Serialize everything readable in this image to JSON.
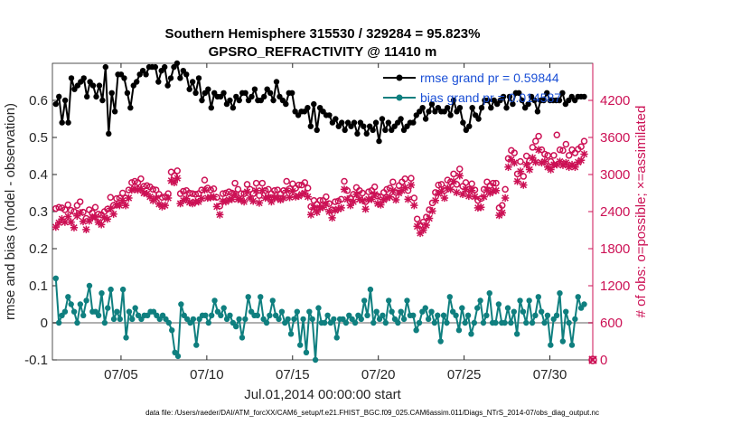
{
  "chart_data": {
    "type": "line",
    "title": "Southern Hemisphere 315530 / 329284 = 95.823%",
    "subtitle": "GPSRO_REFRACTIVITY @ 11410 m",
    "xlabel": "Jul.01,2014 00:00:00 start",
    "ylabel": "rmse and bias (model - observation)",
    "y2label": "# of obs: o=possible; ×=assimilated",
    "footnote": "data file: /Users/raeder/DAI/ATM_forcXX/CAM6_setup/f.e21.FHIST_BGC.f09_025.CAM6assim.011/Diags_NTrS_2014-07/obs_diag_output.nc",
    "xlim": [
      1,
      32.5
    ],
    "ylim": [
      -0.1,
      0.7
    ],
    "y2lim": [
      0,
      4800
    ],
    "x_ticks": [
      5,
      10,
      15,
      20,
      25,
      30
    ],
    "x_tick_labels": [
      "07/05",
      "07/10",
      "07/15",
      "07/20",
      "07/25",
      "07/30"
    ],
    "y_ticks": [
      -0.1,
      0,
      0.1,
      0.2,
      0.3,
      0.4,
      0.5,
      0.6
    ],
    "y_tick_labels": [
      "-0.1",
      "0",
      "0.1",
      "0.2",
      "0.3",
      "0.4",
      "0.5",
      "0.6"
    ],
    "y2_ticks": [
      0,
      600,
      1200,
      1800,
      2400,
      3000,
      3600,
      4200
    ],
    "y2_tick_labels": [
      "0",
      "600",
      "1200",
      "1800",
      "2400",
      "3000",
      "3600",
      "4200"
    ],
    "legend_position": "top-right",
    "colors": {
      "rmse": "#000000",
      "bias": "#0f7f7f",
      "obs": "#cc1155",
      "zero_line": "#b0b0b0"
    },
    "series": [
      {
        "name": "rmse grand pr = 0.59844",
        "axis": "left",
        "values": [
          0.59,
          0.61,
          0.54,
          0.6,
          0.54,
          0.66,
          0.63,
          0.64,
          0.65,
          0.66,
          0.61,
          0.65,
          0.64,
          0.61,
          0.64,
          0.6,
          0.69,
          0.51,
          0.62,
          0.57,
          0.67,
          0.67,
          0.66,
          0.62,
          0.58,
          0.64,
          0.65,
          0.67,
          0.68,
          0.67,
          0.69,
          0.69,
          0.69,
          0.65,
          0.68,
          0.69,
          0.64,
          0.66,
          0.69,
          0.7,
          0.66,
          0.68,
          0.67,
          0.63,
          0.65,
          0.62,
          0.66,
          0.6,
          0.62,
          0.63,
          0.58,
          0.62,
          0.61,
          0.61,
          0.62,
          0.59,
          0.6,
          0.58,
          0.61,
          0.6,
          0.62,
          0.62,
          0.6,
          0.61,
          0.63,
          0.6,
          0.6,
          0.61,
          0.63,
          0.62,
          0.6,
          0.65,
          0.61,
          0.6,
          0.59,
          0.62,
          0.62,
          0.57,
          0.56,
          0.57,
          0.57,
          0.58,
          0.53,
          0.59,
          0.52,
          0.58,
          0.57,
          0.56,
          0.56,
          0.54,
          0.55,
          0.53,
          0.54,
          0.52,
          0.54,
          0.53,
          0.54,
          0.51,
          0.54,
          0.53,
          0.51,
          0.53,
          0.52,
          0.54,
          0.49,
          0.55,
          0.52,
          0.54,
          0.52,
          0.53,
          0.54,
          0.55,
          0.52,
          0.53,
          0.54,
          0.54,
          0.56,
          0.57,
          0.58,
          0.55,
          0.57,
          0.59,
          0.57,
          0.58,
          0.57,
          0.57,
          0.58,
          0.56,
          0.6,
          0.57,
          0.58,
          0.54,
          0.52,
          0.53,
          0.58,
          0.56,
          0.55,
          0.58,
          0.6,
          0.6,
          0.58,
          0.6,
          0.59,
          0.6,
          0.61,
          0.58,
          0.61,
          0.59,
          0.62,
          0.62,
          0.6,
          0.58,
          0.59,
          0.61,
          0.6,
          0.57,
          0.6,
          0.6,
          0.62,
          0.6,
          0.6,
          0.6,
          0.6,
          0.62,
          0.59,
          0.6,
          0.61,
          0.6,
          0.61,
          0.61,
          0.61
        ]
      },
      {
        "name": "bias grand pr = 0.014587",
        "axis": "left",
        "values": [
          0.12,
          0.0,
          0.02,
          0.03,
          0.07,
          0.05,
          0.03,
          0.0,
          0.05,
          0.02,
          0.06,
          0.1,
          0.03,
          0.03,
          0.02,
          0.08,
          0.0,
          0.04,
          0.09,
          0.01,
          0.03,
          0.01,
          0.09,
          -0.04,
          0.03,
          0.01,
          0.04,
          0.02,
          0.01,
          0.02,
          0.02,
          0.03,
          0.03,
          0.02,
          0.01,
          0.02,
          0.01,
          0.0,
          -0.02,
          -0.08,
          -0.09,
          0.05,
          0.02,
          0.01,
          0.0,
          0.01,
          -0.06,
          0.01,
          0.02,
          0.02,
          0.0,
          0.02,
          0.06,
          0.03,
          0.02,
          0.04,
          0.01,
          0.02,
          0.0,
          -0.01,
          0.01,
          -0.04,
          0.01,
          0.07,
          0.03,
          0.02,
          0.02,
          0.07,
          0.01,
          0.0,
          0.02,
          0.06,
          0.02,
          0.01,
          0.03,
          0.0,
          0.01,
          -0.03,
          0.01,
          0.03,
          -0.06,
          0.01,
          -0.08,
          0.03,
          0.01,
          -0.1,
          0.04,
          0.0,
          0.0,
          0.02,
          0.0,
          0.01,
          -0.04,
          0.01,
          0.01,
          0.0,
          0.02,
          0.01,
          0.0,
          0.02,
          0.01,
          0.06,
          0.02,
          0.09,
          0.0,
          0.03,
          0.01,
          0.02,
          0.0,
          0.06,
          0.03,
          0.01,
          0.0,
          0.03,
          0.01,
          0.06,
          0.02,
          0.02,
          -0.02,
          0.0,
          0.03,
          0.04,
          0.01,
          0.03,
          0.0,
          0.02,
          -0.05,
          0.02,
          0.0,
          0.07,
          0.03,
          0.02,
          -0.02,
          0.04,
          0.0,
          0.02,
          -0.03,
          0.0,
          0.04,
          0.06,
          0.0,
          0.02,
          0.08,
          0.0,
          0.0,
          0.05,
          0.0,
          0.0,
          0.04,
          0.0,
          0.03,
          -0.03,
          0.06,
          0.03,
          0.0,
          0.06,
          0.0,
          0.02,
          0.07,
          0.03,
          0.0,
          0.02,
          -0.06,
          0.01,
          0.02,
          0.08,
          -0.05,
          0.03,
          0.0,
          -0.06,
          0.01,
          0.07,
          0.04,
          0.05
        ]
      },
      {
        "name": "possible",
        "axis": "right",
        "marker": "o",
        "values": [
          2450,
          2470,
          2460,
          2430,
          2510,
          2420,
          2400,
          2500,
          2560,
          2390,
          2290,
          2430,
          2380,
          2470,
          2360,
          2350,
          2400,
          2440,
          2630,
          2500,
          2610,
          2620,
          2700,
          2620,
          2750,
          2870,
          2890,
          2870,
          2930,
          2810,
          2820,
          2800,
          2760,
          2750,
          2680,
          2630,
          2640,
          2690,
          3040,
          2980,
          3060,
          2690,
          2730,
          2740,
          2700,
          2690,
          2680,
          2690,
          2750,
          2910,
          2780,
          2750,
          2770,
          2630,
          2490,
          2690,
          2700,
          2720,
          2700,
          2860,
          2760,
          2690,
          2690,
          2840,
          2760,
          2690,
          2860,
          2660,
          2860,
          2740,
          2760,
          2690,
          2740,
          2750,
          2690,
          2740,
          2890,
          2770,
          2850,
          2780,
          2830,
          2830,
          2870,
          2780,
          2480,
          2580,
          2520,
          2580,
          2580,
          2640,
          2530,
          2430,
          2560,
          2570,
          2600,
          2890,
          2740,
          2620,
          2680,
          2790,
          2740,
          2700,
          2560,
          2720,
          2740,
          2800,
          2650,
          2640,
          2710,
          2760,
          2780,
          2880,
          2710,
          2820,
          2880,
          2930,
          2740,
          2940,
          2620,
          2280,
          2180,
          2230,
          2310,
          2430,
          2540,
          2710,
          2830,
          2840,
          2740,
          2910,
          2880,
          3010,
          2840,
          3090,
          2810,
          2870,
          2760,
          2850,
          2750,
          2580,
          2610,
          2760,
          2880,
          2820,
          2860,
          2860,
          2460,
          2500,
          2760,
          3260,
          3390,
          3350,
          3010,
          3210,
          2970,
          3300,
          3220,
          3440,
          3540,
          3620,
          3400,
          3330,
          3310,
          3210,
          3310,
          3640,
          3400,
          3390,
          3490,
          3310,
          3400,
          3350,
          3410,
          3450,
          3540
        ]
      },
      {
        "name": "assimilated",
        "axis": "right",
        "marker": "x",
        "values": [
          2150,
          2220,
          2280,
          2230,
          2320,
          2230,
          2140,
          2330,
          2380,
          2240,
          2110,
          2250,
          2310,
          2310,
          2230,
          2190,
          2300,
          2280,
          2450,
          2360,
          2510,
          2500,
          2580,
          2500,
          2620,
          2750,
          2770,
          2750,
          2770,
          2700,
          2690,
          2640,
          2580,
          2620,
          2520,
          2480,
          2500,
          2620,
          2900,
          2870,
          2940,
          2530,
          2580,
          2610,
          2550,
          2530,
          2560,
          2560,
          2610,
          2750,
          2620,
          2630,
          2640,
          2480,
          2350,
          2570,
          2560,
          2590,
          2600,
          2680,
          2600,
          2590,
          2560,
          2720,
          2620,
          2570,
          2740,
          2540,
          2740,
          2620,
          2630,
          2560,
          2630,
          2620,
          2590,
          2620,
          2740,
          2630,
          2730,
          2640,
          2650,
          2680,
          2700,
          2640,
          2350,
          2460,
          2390,
          2460,
          2470,
          2520,
          2400,
          2300,
          2420,
          2440,
          2460,
          2760,
          2600,
          2500,
          2560,
          2680,
          2600,
          2580,
          2440,
          2600,
          2600,
          2680,
          2530,
          2510,
          2590,
          2620,
          2640,
          2740,
          2590,
          2700,
          2740,
          2790,
          2600,
          2830,
          2500,
          2160,
          2050,
          2100,
          2180,
          2290,
          2410,
          2580,
          2690,
          2730,
          2620,
          2780,
          2760,
          2890,
          2710,
          2980,
          2680,
          2760,
          2650,
          2740,
          2640,
          2460,
          2470,
          2640,
          2750,
          2700,
          2730,
          2740,
          2340,
          2380,
          2620,
          3120,
          3240,
          3190,
          2890,
          3050,
          2830,
          3160,
          3080,
          3270,
          3200,
          3400,
          3190,
          3210,
          3120,
          3080,
          3160,
          3160,
          3210,
          3150,
          3190,
          3120,
          3160,
          3120,
          3200,
          3230,
          3330
        ]
      }
    ]
  }
}
